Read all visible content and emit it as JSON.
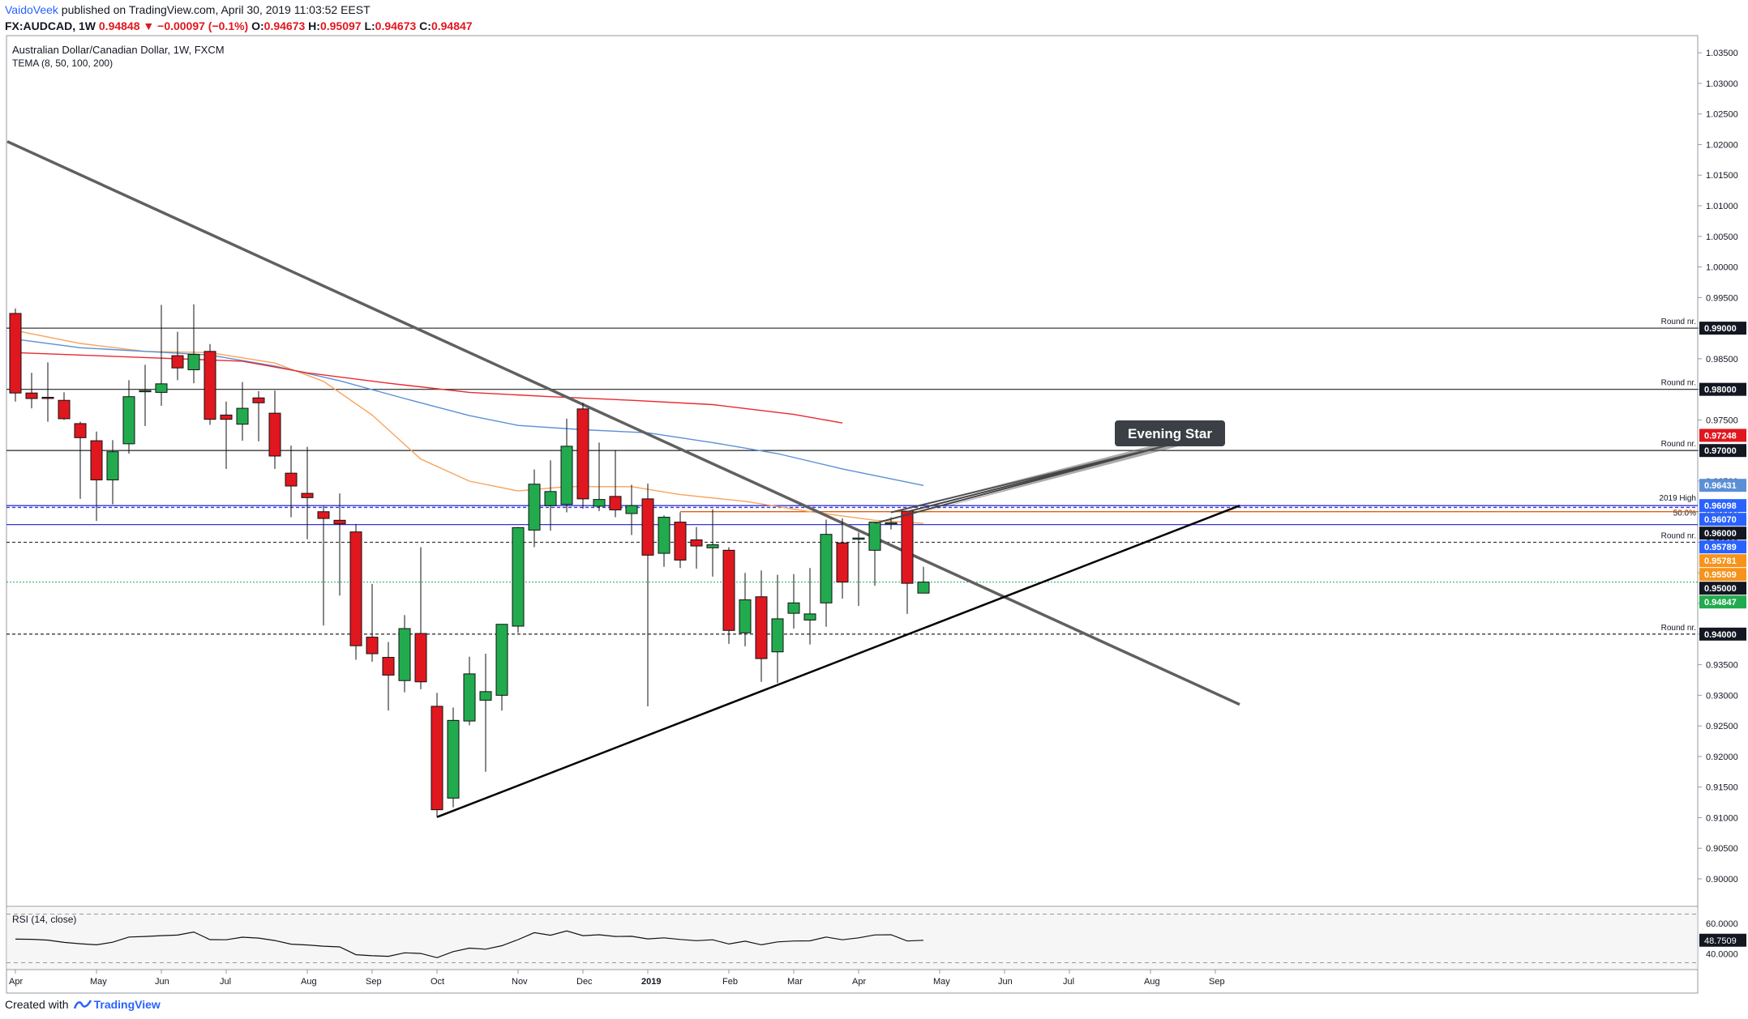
{
  "header": {
    "author": "VaidoVeek",
    "published": "published on TradingView.com, April 30, 2019 11:03:52 EEST",
    "symbol": "FX:AUDCAD, 1W",
    "last": "0.94848",
    "change": "▼ −0.00097 (−0.1%)",
    "ohlc_o_label": "O:",
    "ohlc_o": "0.94673",
    "ohlc_h_label": "H:",
    "ohlc_h": "0.95097",
    "ohlc_l_label": "L:",
    "ohlc_l": "0.94673",
    "ohlc_c_label": "C:",
    "ohlc_c": "0.94847"
  },
  "chart_header": {
    "title": "Australian Dollar/Canadian Dollar, 1W, FXCM",
    "indicator": "TEMA (8, 50, 100, 200)"
  },
  "footer": {
    "created_with": "Created with",
    "brand": "TradingView"
  },
  "colors": {
    "up": "#22ab4e",
    "down": "#e0171f",
    "tema50": "#f7a35c",
    "tema100": "#5b8fd6",
    "tema200": "#e8292f",
    "trend_down": "#606060",
    "trend_up": "#000000",
    "hline": "#3a3a3a",
    "blue_line": "#3535d8",
    "orange_line": "#e06010"
  },
  "chart_data": {
    "type": "candlestick",
    "title": "Australian Dollar/Canadian Dollar, 1W, FXCM",
    "timeframe": "1W",
    "x_tick_labels": [
      "Apr",
      "May",
      "Jun",
      "Jul",
      "Aug",
      "Sep",
      "Oct",
      "Nov",
      "Dec",
      "2019",
      "Feb",
      "Mar",
      "Apr",
      "May",
      "Jun",
      "Jul",
      "Aug",
      "Sep"
    ],
    "x_tick_weeks": [
      0,
      5,
      9,
      13,
      18,
      22,
      26,
      31,
      35,
      39,
      44,
      48,
      52,
      57,
      61,
      65,
      70,
      74
    ],
    "y_tick_labels": [
      "1.03500",
      "1.03000",
      "1.02500",
      "1.02000",
      "1.01500",
      "1.01000",
      "1.00500",
      "1.00000",
      "0.99500",
      "0.99000",
      "0.98500",
      "0.98000",
      "0.97500",
      "0.97000",
      "0.96500",
      "0.96000",
      "0.95500",
      "0.95000",
      "0.94500",
      "0.94000",
      "0.93500",
      "0.93000",
      "0.92500",
      "0.92000",
      "0.91500",
      "0.91000",
      "0.90500",
      "0.90000"
    ],
    "ylim": [
      0.8955,
      1.0378
    ],
    "candles": [
      {
        "o": 0.9924,
        "h": 0.9932,
        "l": 0.978,
        "c": 0.9794
      },
      {
        "o": 0.9794,
        "h": 0.9827,
        "l": 0.9769,
        "c": 0.9785
      },
      {
        "o": 0.9787,
        "h": 0.9844,
        "l": 0.9747,
        "c": 0.9786
      },
      {
        "o": 0.9782,
        "h": 0.9795,
        "l": 0.975,
        "c": 0.9752
      },
      {
        "o": 0.9744,
        "h": 0.9747,
        "l": 0.9621,
        "c": 0.9721
      },
      {
        "o": 0.9716,
        "h": 0.9731,
        "l": 0.9585,
        "c": 0.9652
      },
      {
        "o": 0.9652,
        "h": 0.9717,
        "l": 0.9612,
        "c": 0.9698
      },
      {
        "o": 0.9711,
        "h": 0.9815,
        "l": 0.9695,
        "c": 0.9788
      },
      {
        "o": 0.9797,
        "h": 0.984,
        "l": 0.974,
        "c": 0.9798
      },
      {
        "o": 0.9795,
        "h": 0.9938,
        "l": 0.9773,
        "c": 0.9809
      },
      {
        "o": 0.9855,
        "h": 0.9894,
        "l": 0.9815,
        "c": 0.9835
      },
      {
        "o": 0.9832,
        "h": 0.9939,
        "l": 0.981,
        "c": 0.9857
      },
      {
        "o": 0.9862,
        "h": 0.9874,
        "l": 0.9742,
        "c": 0.9751
      },
      {
        "o": 0.9758,
        "h": 0.978,
        "l": 0.967,
        "c": 0.9751
      },
      {
        "o": 0.9743,
        "h": 0.9812,
        "l": 0.9716,
        "c": 0.9769
      },
      {
        "o": 0.9786,
        "h": 0.9797,
        "l": 0.9715,
        "c": 0.9778
      },
      {
        "o": 0.9761,
        "h": 0.9798,
        "l": 0.967,
        "c": 0.9691
      },
      {
        "o": 0.9663,
        "h": 0.9708,
        "l": 0.9591,
        "c": 0.9642
      },
      {
        "o": 0.963,
        "h": 0.9706,
        "l": 0.9555,
        "c": 0.9623
      },
      {
        "o": 0.96,
        "h": 0.961,
        "l": 0.9414,
        "c": 0.9589
      },
      {
        "o": 0.9586,
        "h": 0.963,
        "l": 0.9463,
        "c": 0.958
      },
      {
        "o": 0.9567,
        "h": 0.958,
        "l": 0.9358,
        "c": 0.9381
      },
      {
        "o": 0.9395,
        "h": 0.9482,
        "l": 0.9355,
        "c": 0.9368
      },
      {
        "o": 0.9362,
        "h": 0.9387,
        "l": 0.9275,
        "c": 0.9333
      },
      {
        "o": 0.9324,
        "h": 0.9431,
        "l": 0.9305,
        "c": 0.9409
      },
      {
        "o": 0.9401,
        "h": 0.9542,
        "l": 0.931,
        "c": 0.9322
      },
      {
        "o": 0.9282,
        "h": 0.9304,
        "l": 0.9101,
        "c": 0.9113
      },
      {
        "o": 0.9132,
        "h": 0.928,
        "l": 0.9117,
        "c": 0.9259
      },
      {
        "o": 0.9258,
        "h": 0.9363,
        "l": 0.9251,
        "c": 0.9335
      },
      {
        "o": 0.9292,
        "h": 0.9368,
        "l": 0.9175,
        "c": 0.9306
      },
      {
        "o": 0.93,
        "h": 0.9416,
        "l": 0.9275,
        "c": 0.9416
      },
      {
        "o": 0.9413,
        "h": 0.9575,
        "l": 0.9402,
        "c": 0.9574
      },
      {
        "o": 0.957,
        "h": 0.9669,
        "l": 0.9542,
        "c": 0.9645
      },
      {
        "o": 0.961,
        "h": 0.9684,
        "l": 0.9569,
        "c": 0.9633
      },
      {
        "o": 0.9612,
        "h": 0.9752,
        "l": 0.9599,
        "c": 0.9707
      },
      {
        "o": 0.9768,
        "h": 0.9778,
        "l": 0.9605,
        "c": 0.9621
      },
      {
        "o": 0.9609,
        "h": 0.9713,
        "l": 0.9601,
        "c": 0.962
      },
      {
        "o": 0.9625,
        "h": 0.9701,
        "l": 0.9591,
        "c": 0.9603
      },
      {
        "o": 0.9597,
        "h": 0.9644,
        "l": 0.9562,
        "c": 0.961
      },
      {
        "o": 0.9621,
        "h": 0.9646,
        "l": 0.9282,
        "c": 0.9529
      },
      {
        "o": 0.9532,
        "h": 0.9594,
        "l": 0.951,
        "c": 0.9591
      },
      {
        "o": 0.9583,
        "h": 0.9599,
        "l": 0.9508,
        "c": 0.9521
      },
      {
        "o": 0.9554,
        "h": 0.9575,
        "l": 0.9507,
        "c": 0.9544
      },
      {
        "o": 0.9541,
        "h": 0.9604,
        "l": 0.9494,
        "c": 0.9546
      },
      {
        "o": 0.9537,
        "h": 0.9542,
        "l": 0.9384,
        "c": 0.9406
      },
      {
        "o": 0.9402,
        "h": 0.95,
        "l": 0.938,
        "c": 0.9456
      },
      {
        "o": 0.9461,
        "h": 0.9504,
        "l": 0.9322,
        "c": 0.936
      },
      {
        "o": 0.9371,
        "h": 0.9497,
        "l": 0.932,
        "c": 0.9425
      },
      {
        "o": 0.9434,
        "h": 0.9498,
        "l": 0.9409,
        "c": 0.9451
      },
      {
        "o": 0.9423,
        "h": 0.9508,
        "l": 0.9383,
        "c": 0.9433
      },
      {
        "o": 0.9451,
        "h": 0.9587,
        "l": 0.9412,
        "c": 0.9563
      },
      {
        "o": 0.9549,
        "h": 0.9589,
        "l": 0.9458,
        "c": 0.9485
      },
      {
        "o": 0.9557,
        "h": 0.9566,
        "l": 0.9446,
        "c": 0.9557
      },
      {
        "o": 0.9537,
        "h": 0.9581,
        "l": 0.9479,
        "c": 0.9583
      },
      {
        "o": 0.958,
        "h": 0.9591,
        "l": 0.9571,
        "c": 0.9582
      },
      {
        "o": 0.9601,
        "h": 0.96,
        "l": 0.9433,
        "c": 0.9483
      },
      {
        "o": 0.9467,
        "h": 0.951,
        "l": 0.9467,
        "c": 0.9485
      }
    ],
    "tema": [
      {
        "name": "TEMA 50",
        "color": "#f7a35c",
        "points": [
          [
            0,
            0.9896
          ],
          [
            4,
            0.9875
          ],
          [
            8,
            0.9862
          ],
          [
            12,
            0.986
          ],
          [
            16,
            0.9843
          ],
          [
            19,
            0.9813
          ],
          [
            22,
            0.9758
          ],
          [
            25,
            0.9686
          ],
          [
            28,
            0.965
          ],
          [
            31,
            0.9634
          ],
          [
            34,
            0.9641
          ],
          [
            38,
            0.9641
          ],
          [
            41,
            0.9628
          ],
          [
            45,
            0.9617
          ],
          [
            49,
            0.96
          ],
          [
            53,
            0.9586
          ],
          [
            56,
            0.9581
          ]
        ]
      },
      {
        "name": "TEMA 100",
        "color": "#5b8fd6",
        "points": [
          [
            0,
            0.9882
          ],
          [
            4,
            0.9868
          ],
          [
            8,
            0.9862
          ],
          [
            12,
            0.9856
          ],
          [
            16,
            0.9838
          ],
          [
            20,
            0.9814
          ],
          [
            24,
            0.9785
          ],
          [
            28,
            0.9757
          ],
          [
            31,
            0.9741
          ],
          [
            35,
            0.9734
          ],
          [
            39,
            0.9729
          ],
          [
            43,
            0.9713
          ],
          [
            47,
            0.9695
          ],
          [
            51,
            0.967
          ],
          [
            56,
            0.9643
          ]
        ]
      },
      {
        "name": "TEMA 200",
        "color": "#e8292f",
        "points": [
          [
            0,
            0.986
          ],
          [
            8,
            0.9852
          ],
          [
            14,
            0.9846
          ],
          [
            18,
            0.9827
          ],
          [
            23,
            0.981
          ],
          [
            28,
            0.9795
          ],
          [
            33,
            0.9788
          ],
          [
            38,
            0.9782
          ],
          [
            43,
            0.9775
          ],
          [
            48,
            0.9759
          ],
          [
            51,
            0.9745
          ]
        ]
      }
    ],
    "trendlines": [
      {
        "name": "descending-trendline",
        "from": [
          -0.5,
          1.0205
        ],
        "to": [
          75.5,
          0.9285
        ]
      },
      {
        "name": "ascending-trendline",
        "from": [
          26,
          0.9101
        ],
        "to": [
          75.5,
          0.961
        ]
      }
    ],
    "horizontal_levels": [
      {
        "value": 0.99,
        "label": "Round nr.",
        "tag": "0.99000",
        "tag_color": "#131722"
      },
      {
        "value": 0.98,
        "label": "Round nr.",
        "tag": "0.98000",
        "tag_color": "#131722"
      },
      {
        "value": 0.97,
        "label": "Round nr.",
        "tag": "0.97000",
        "tag_color": "#131722"
      },
      {
        "value": 0.955,
        "label": "Round nr.",
        "tag": "0.95509",
        "tag_color": "#f7931a"
      },
      {
        "value": 0.94,
        "label": "Round nr.",
        "tag": "0.94000",
        "tag_color": "#131722"
      }
    ],
    "blue_levels": [
      {
        "value": 0.961,
        "label": "2019 High",
        "tag": "0.96098",
        "tag_color": "#2962ff"
      },
      {
        "value": 0.9607,
        "label": "50.0%",
        "tag": "0.96070",
        "tag_color": "#2962ff"
      }
    ],
    "price_tags": [
      {
        "value": 0.97248,
        "tag": "0.97248",
        "color": "#e0171f"
      },
      {
        "value": 0.96431,
        "tag": "0.96431",
        "color": "#5b8fd6"
      },
      {
        "value": 0.96,
        "tag": "0.96000",
        "color": "#131722"
      },
      {
        "value": 0.95789,
        "tag": "0.95789",
        "color": "#2962ff"
      },
      {
        "value": 0.95781,
        "tag": "0.95781",
        "color": "#f7931a"
      },
      {
        "value": 0.95,
        "tag": "0.95000",
        "color": "#131722"
      },
      {
        "value": 0.94847,
        "tag": "0.94847",
        "color": "#22ab4e"
      }
    ],
    "annotation": {
      "text": "Evening Star",
      "points_to_weeks": [
        53,
        54,
        55
      ]
    },
    "rsi": {
      "title": "RSI (14, close)",
      "ylim": [
        30,
        70
      ],
      "levels": [
        70,
        30
      ],
      "tick_labels": [
        "60.0000",
        "40.0000"
      ],
      "current": "48.7509",
      "values": [
        49.5,
        49.4,
        48.9,
        47.4,
        46.5,
        45.8,
        47.5,
        50.9,
        51.3,
        51.8,
        52.2,
        54.2,
        49.2,
        49.1,
        50.8,
        50.2,
        48.6,
        46.2,
        45.7,
        44.9,
        44.4,
        39.3,
        38.6,
        38.2,
        40.5,
        40.1,
        37.3,
        41.3,
        43.6,
        42.9,
        45.2,
        49.2,
        53.8,
        52.1,
        54.9,
        51.8,
        52.4,
        51.3,
        51.4,
        49.7,
        50.4,
        49.3,
        48.5,
        49.1,
        46.3,
        48.2,
        45.8,
        47.7,
        48.3,
        48.4,
        50.9,
        49.1,
        50.4,
        52.3,
        52.4,
        48.3,
        48.8
      ]
    }
  }
}
